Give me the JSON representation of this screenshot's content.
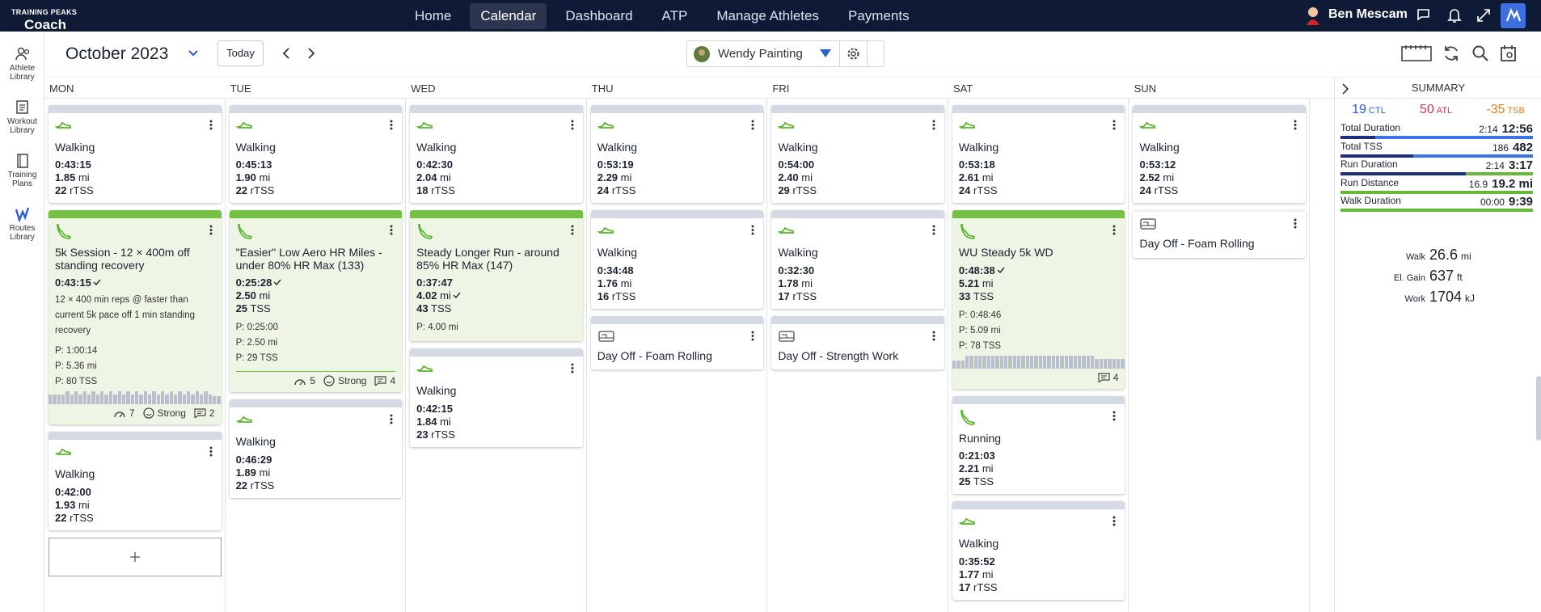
{
  "nav": {
    "brand": "TRAINING PEAKS",
    "product": "Coach",
    "links": [
      "Home",
      "Calendar",
      "Dashboard",
      "ATP",
      "Manage Athletes",
      "Payments"
    ],
    "active": 1,
    "user": "Ben Mescam"
  },
  "sidebar": [
    "Athlete Library",
    "Workout Library",
    "Training Plans",
    "Routes Library"
  ],
  "toolbar": {
    "month": "October 2023",
    "today": "Today",
    "athlete": "Wendy Painting"
  },
  "calendar": {
    "columns": [
      {
        "day": "MON",
        "cards": [
          {
            "kind": "walk",
            "title": "Walking",
            "lines": [
              [
                "0:43:15"
              ],
              [
                "1.85",
                "mi"
              ],
              [
                "22",
                "rTSS"
              ]
            ]
          },
          {
            "kind": "run",
            "done": true,
            "title": "5k Session - 12 × 400m off standing recovery",
            "lines": [
              [
                "0:43:15"
              ]
            ],
            "check_line": 0,
            "desc": "12 × 400 min reps @ faster than current 5k pace off 1 min standing recovery",
            "planned": [
              "P: 1:00:14",
              "P: 5.36 mi",
              "P: 80 TSS"
            ],
            "chart": true,
            "footer": {
              "score": "7",
              "mood": "Strong",
              "comments": "2"
            }
          },
          {
            "kind": "walk",
            "title": "Walking",
            "lines": [
              [
                "0:42:00"
              ],
              [
                "1.93",
                "mi"
              ],
              [
                "22",
                "rTSS"
              ]
            ]
          }
        ]
      },
      {
        "day": "TUE",
        "cards": [
          {
            "kind": "walk",
            "title": "Walking",
            "lines": [
              [
                "0:45:13"
              ],
              [
                "1.90",
                "mi"
              ],
              [
                "22",
                "rTSS"
              ]
            ]
          },
          {
            "kind": "run",
            "done": true,
            "title": "\"Easier\" Low Aero HR Miles - under 80% HR Max (133)",
            "lines": [
              [
                "0:25:28"
              ],
              [
                "2.50",
                "mi"
              ],
              [
                "25",
                "TSS"
              ]
            ],
            "check_line": 0,
            "planned": [
              "P: 0:25:00",
              "P: 2.50 mi",
              "P: 29 TSS"
            ],
            "footer": {
              "score": "5",
              "mood": "Strong",
              "comments": "4"
            }
          },
          {
            "kind": "walk",
            "title": "Walking",
            "lines": [
              [
                "0:46:29"
              ],
              [
                "1.89",
                "mi"
              ],
              [
                "22",
                "rTSS"
              ]
            ]
          }
        ]
      },
      {
        "day": "WED",
        "cards": [
          {
            "kind": "walk",
            "title": "Walking",
            "lines": [
              [
                "0:42:30"
              ],
              [
                "2.04",
                "mi"
              ],
              [
                "18",
                "rTSS"
              ]
            ]
          },
          {
            "kind": "run",
            "done": true,
            "title": "Steady Longer Run - around 85% HR Max (147)",
            "lines": [
              [
                "0:37:47"
              ],
              [
                "4.02",
                "mi"
              ],
              [
                "43",
                "TSS"
              ]
            ],
            "check_line": 1,
            "planned": [
              "P: 4.00 mi"
            ]
          },
          {
            "kind": "walk",
            "title": "Walking",
            "lines": [
              [
                "0:42:15"
              ],
              [
                "1.84",
                "mi"
              ],
              [
                "23",
                "rTSS"
              ]
            ]
          }
        ]
      },
      {
        "day": "THU",
        "cards": [
          {
            "kind": "walk",
            "title": "Walking",
            "lines": [
              [
                "0:53:19"
              ],
              [
                "2.29",
                "mi"
              ],
              [
                "24",
                "rTSS"
              ]
            ]
          },
          {
            "kind": "walk",
            "title": "Walking",
            "lines": [
              [
                "0:34:48"
              ],
              [
                "1.76",
                "mi"
              ],
              [
                "16",
                "rTSS"
              ]
            ]
          },
          {
            "kind": "off",
            "title": "Day Off - Foam Rolling"
          }
        ]
      },
      {
        "day": "FRI",
        "cards": [
          {
            "kind": "walk",
            "title": "Walking",
            "lines": [
              [
                "0:54:00"
              ],
              [
                "2.40",
                "mi"
              ],
              [
                "29",
                "rTSS"
              ]
            ]
          },
          {
            "kind": "walk",
            "title": "Walking",
            "lines": [
              [
                "0:32:30"
              ],
              [
                "1.78",
                "mi"
              ],
              [
                "17",
                "rTSS"
              ]
            ]
          },
          {
            "kind": "off",
            "title": "Day Off - Strength Work"
          }
        ]
      },
      {
        "day": "SAT",
        "cards": [
          {
            "kind": "walk",
            "title": "Walking",
            "lines": [
              [
                "0:53:18"
              ],
              [
                "2.61",
                "mi"
              ],
              [
                "24",
                "rTSS"
              ]
            ]
          },
          {
            "kind": "run",
            "done": true,
            "title": "WU Steady 5k WD",
            "lines": [
              [
                "0:48:38"
              ],
              [
                "5.21",
                "mi"
              ],
              [
                "33",
                "TSS"
              ]
            ],
            "check_line": 0,
            "planned": [
              "P: 0:48:46",
              "P: 5.09 mi",
              "P: 78 TSS"
            ],
            "chart": true,
            "footer": {
              "comments": "4"
            }
          },
          {
            "kind": "run",
            "title": "Running",
            "lines": [
              [
                "0:21:03"
              ],
              [
                "2.21",
                "mi"
              ],
              [
                "25",
                "TSS"
              ]
            ]
          },
          {
            "kind": "walk",
            "title": "Walking",
            "lines": [
              [
                "0:35:52"
              ],
              [
                "1.77",
                "mi"
              ],
              [
                "17",
                "rTSS"
              ]
            ]
          }
        ]
      },
      {
        "day": "SUN",
        "cards": [
          {
            "kind": "walk",
            "title": "Walking",
            "lines": [
              [
                "0:53:12"
              ],
              [
                "2.52",
                "mi"
              ],
              [
                "24",
                "rTSS"
              ]
            ]
          },
          {
            "kind": "off",
            "title": "Day Off - Foam Rolling"
          }
        ]
      }
    ]
  },
  "summary": {
    "title": "SUMMARY",
    "fitness": [
      {
        "v": "19",
        "u": "CTL"
      },
      {
        "v": "50",
        "u": "ATL"
      },
      {
        "v": "-35",
        "u": "TSB"
      }
    ],
    "rows": [
      {
        "label": "Total Duration",
        "done": "2:14",
        "planned": "12:56"
      },
      {
        "label": "Total TSS",
        "done": "186",
        "planned": "482"
      },
      {
        "label": "Run Duration",
        "done": "2:14",
        "planned": "3:17"
      },
      {
        "label": "Run Distance",
        "done": "16.9",
        "planned": "19.2 mi"
      },
      {
        "label": "Walk Duration",
        "done": "00:00",
        "planned": "9:39"
      }
    ],
    "totals": [
      {
        "label": "Walk",
        "v": "26.6",
        "u": "mi"
      },
      {
        "label": "El. Gain",
        "v": "637",
        "u": "ft"
      },
      {
        "label": "Work",
        "v": "1704",
        "u": "kJ"
      }
    ]
  }
}
